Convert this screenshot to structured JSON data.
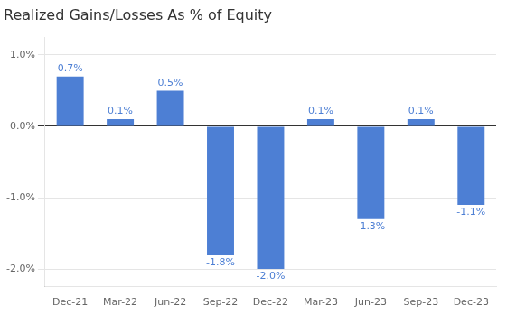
{
  "chart_data": {
    "type": "bar",
    "title": "Realized Gains/Losses As % of Equity",
    "categories": [
      "Dec-21",
      "Mar-22",
      "Jun-22",
      "Sep-22",
      "Dec-22",
      "Mar-23",
      "Jun-23",
      "Sep-23",
      "Dec-23"
    ],
    "values": [
      0.7,
      0.1,
      0.5,
      -1.8,
      -2.0,
      0.1,
      -1.3,
      0.1,
      -1.1
    ],
    "value_labels": [
      "0.7%",
      "0.1%",
      "0.5%",
      "-1.8%",
      "-2.0%",
      "0.1%",
      "-1.3%",
      "0.1%",
      "-1.1%"
    ],
    "data_labels": true,
    "color": "#4D7FD4",
    "ylim": [
      -2.25,
      1.25
    ],
    "yticks": [
      {
        "value": -2.0,
        "label": "-2.0%"
      },
      {
        "value": -1.0,
        "label": "-1.0%"
      },
      {
        "value": 0.0,
        "label": "0.0%"
      },
      {
        "value": 1.0,
        "label": "1.0%"
      }
    ],
    "grid": true
  }
}
